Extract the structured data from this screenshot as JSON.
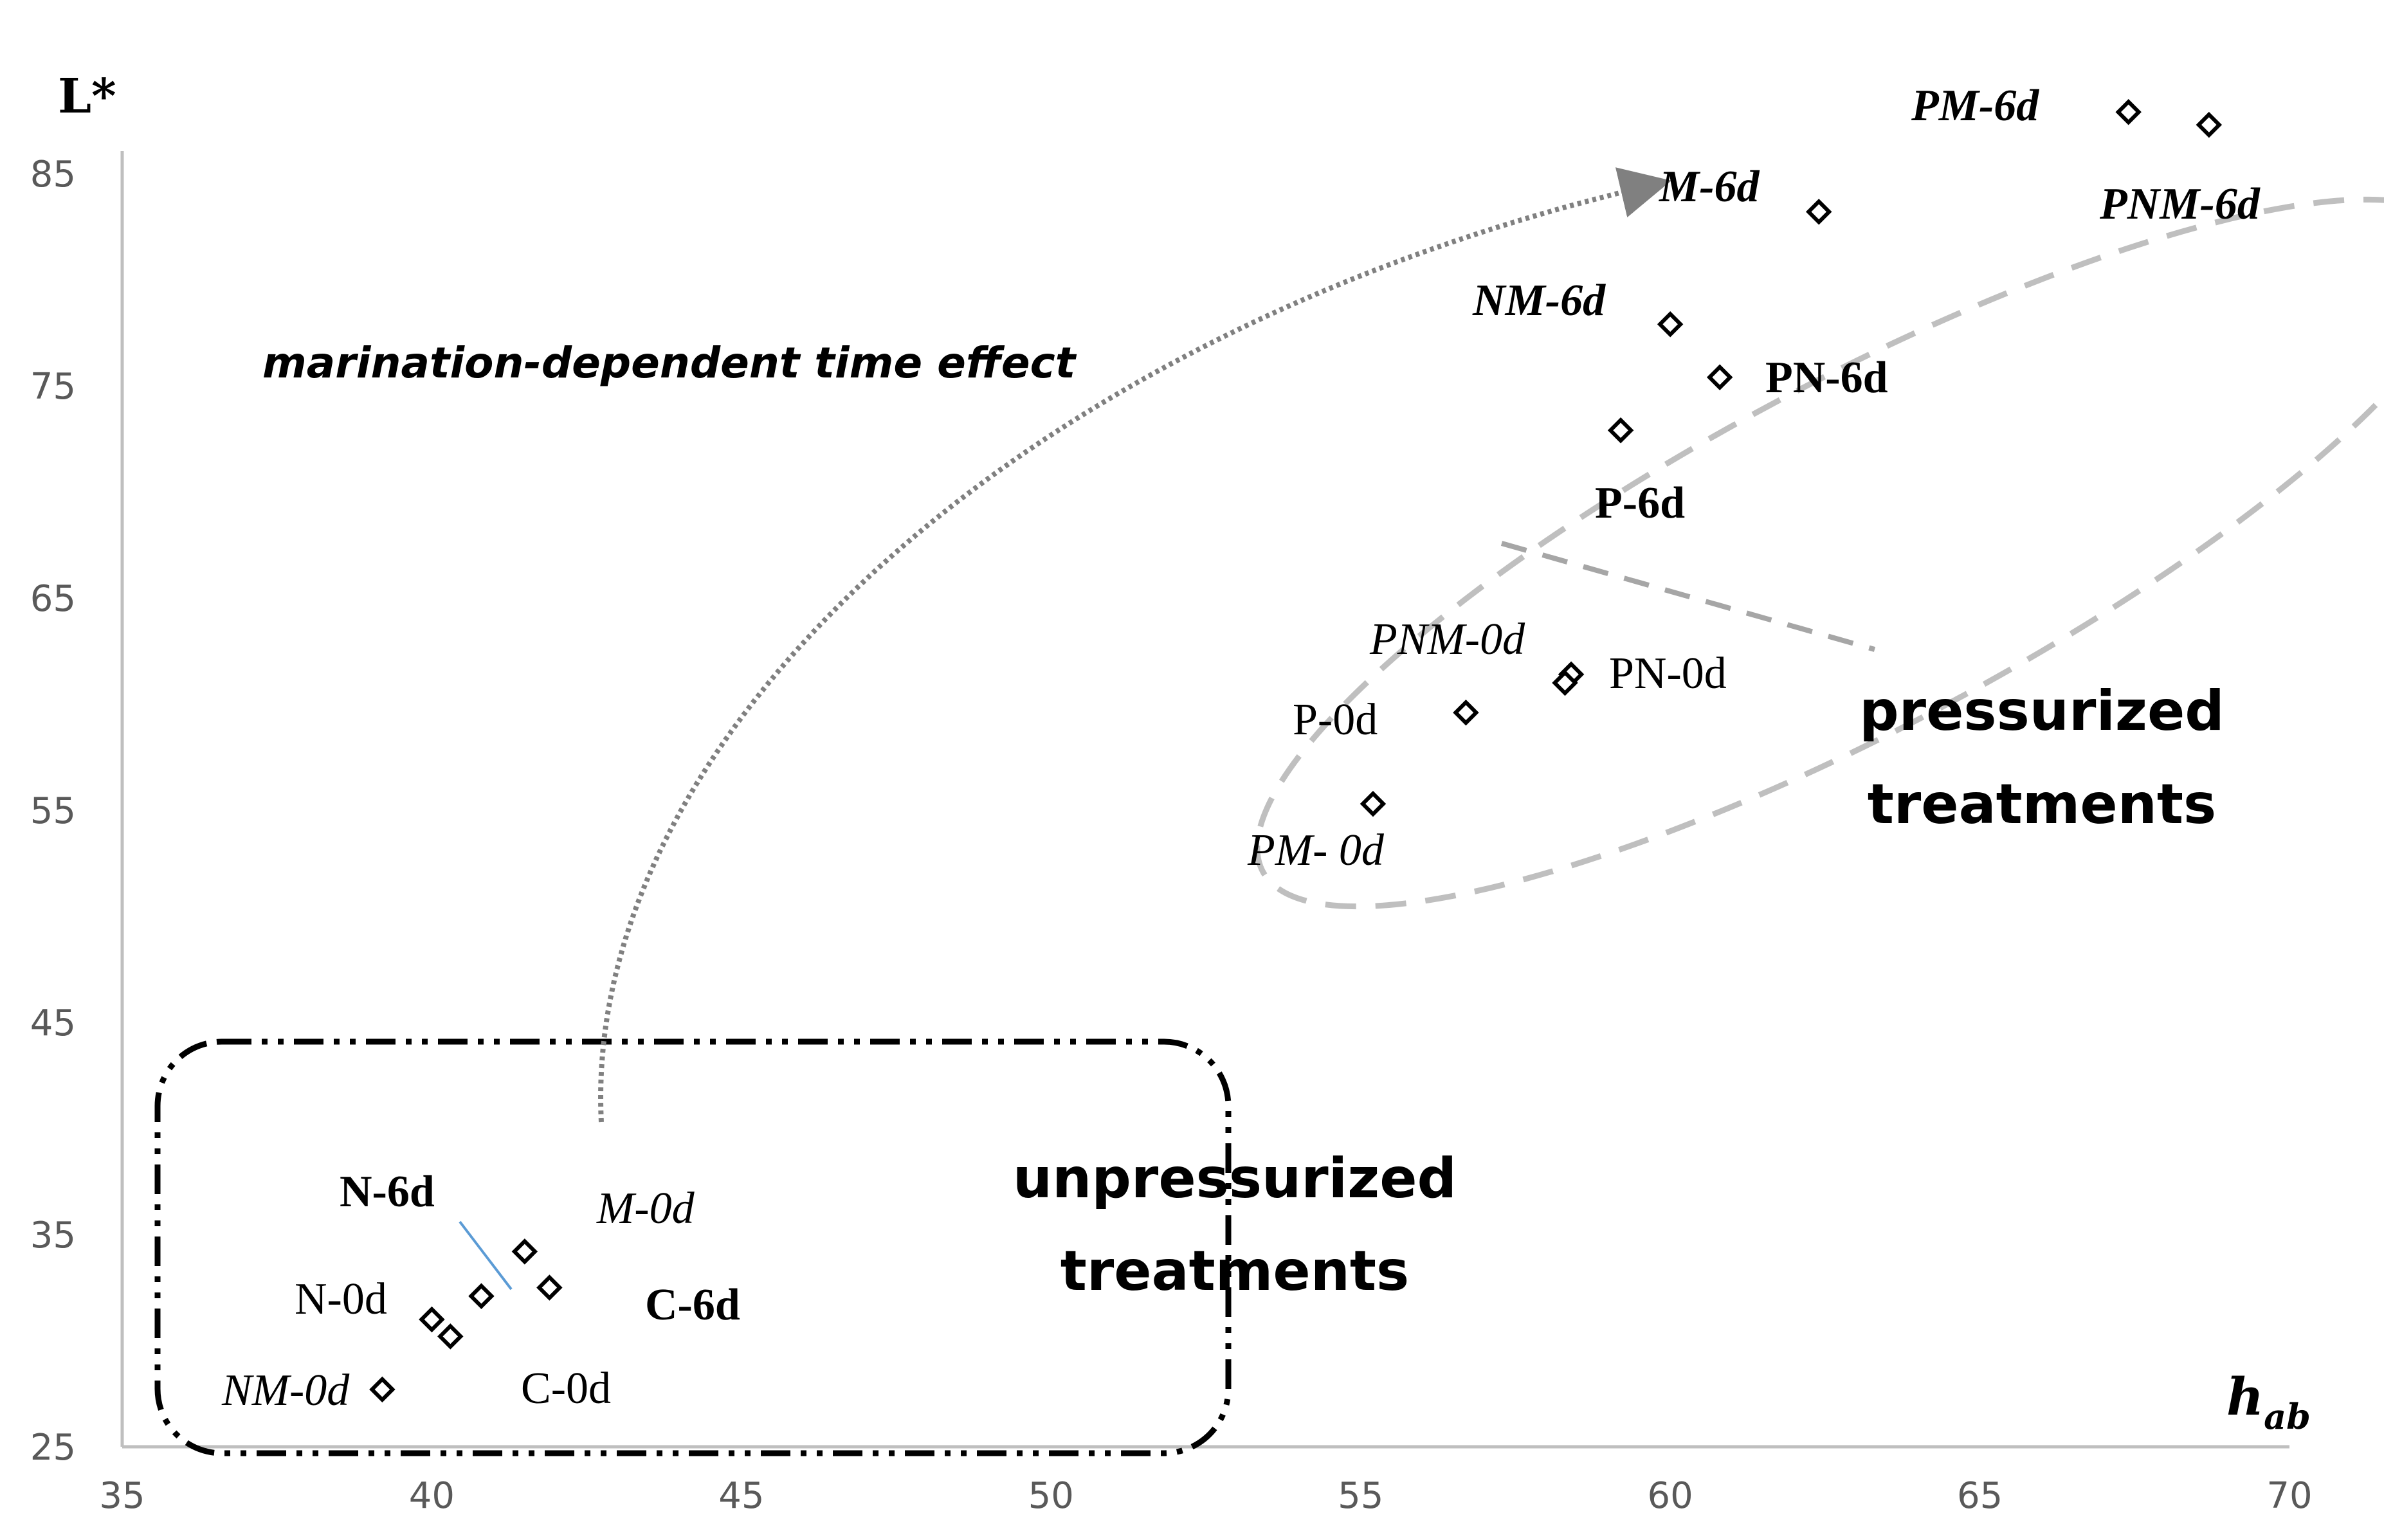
{
  "chart_data": {
    "type": "scatter",
    "xlabel": "h",
    "xlabel_sub": "ab",
    "ylabel": "L*",
    "xlim": [
      35,
      70
    ],
    "ylim": [
      25,
      88
    ],
    "x_ticks": [
      35,
      40,
      45,
      50,
      55,
      60,
      65,
      70
    ],
    "y_ticks": [
      25,
      35,
      45,
      55,
      65,
      75,
      85
    ],
    "grid": false,
    "marker": "diamond",
    "points": [
      {
        "name": "C-0d",
        "x": 40.3,
        "y": 30.2,
        "style": "normal"
      },
      {
        "name": "N-0d",
        "x": 40.0,
        "y": 31.0,
        "style": "normal"
      },
      {
        "name": "NM-0d",
        "x": 39.2,
        "y": 27.7,
        "style": "italic"
      },
      {
        "name": "M-0d",
        "x": 41.5,
        "y": 34.2,
        "style": "italic"
      },
      {
        "name": "N-6d",
        "x": 40.8,
        "y": 32.1,
        "style": "bold"
      },
      {
        "name": "C-6d",
        "x": 41.9,
        "y": 32.5,
        "style": "bold"
      },
      {
        "name": "P-0d",
        "x": 56.7,
        "y": 59.6,
        "style": "normal"
      },
      {
        "name": "PN-0d",
        "x": 58.4,
        "y": 61.4,
        "style": "normal"
      },
      {
        "name": "PNM-0d",
        "x": 58.3,
        "y": 61.0,
        "style": "italic"
      },
      {
        "name": "PM- 0d",
        "x": 55.2,
        "y": 55.3,
        "style": "italic"
      },
      {
        "name": "P-6d",
        "x": 59.2,
        "y": 72.9,
        "style": "bold"
      },
      {
        "name": "PN-6d",
        "x": 60.8,
        "y": 75.4,
        "style": "bold"
      },
      {
        "name": "NM-6d",
        "x": 60.0,
        "y": 77.9,
        "style": "bold-italic"
      },
      {
        "name": "M-6d",
        "x": 62.4,
        "y": 83.2,
        "style": "bold-italic"
      },
      {
        "name": "PM-6d",
        "x": 67.4,
        "y": 87.9,
        "style": "bold-italic"
      },
      {
        "name": "PNM-6d",
        "x": 68.7,
        "y": 87.3,
        "style": "bold-italic"
      }
    ],
    "annotations": {
      "unpressurized": [
        "unpressurized",
        "treatments"
      ],
      "pressurized": [
        "pressurized",
        "treatments"
      ],
      "time_effect": "marination-dependent time effect"
    }
  },
  "colors": {
    "axis": "#bfbfbf",
    "tick_text": "#595959",
    "marker": "#000000",
    "ellipse": "#bfbfbf",
    "arrow": "#808080",
    "leader": "#5b9bd5"
  }
}
